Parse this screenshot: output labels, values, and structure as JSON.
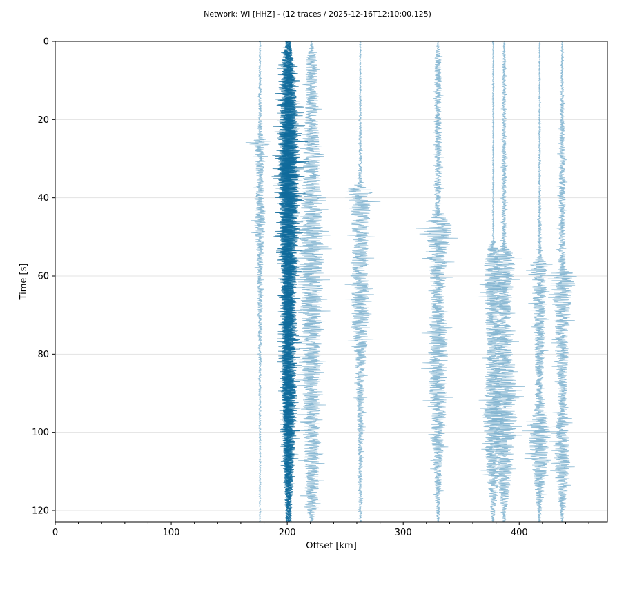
{
  "chart_data": {
    "type": "line",
    "title": "Network: WI [HHZ] - (12 traces / 2025-12-16T12:10:00.125)",
    "xlabel": "Offset [km]",
    "ylabel": "Time [s]",
    "xlim": [
      0,
      476
    ],
    "ylim": [
      123,
      0
    ],
    "xticks": [
      "0",
      "100",
      "200",
      "300",
      "400"
    ],
    "xtick_values": [
      0,
      100,
      200,
      300,
      400
    ],
    "xminor_step": 20,
    "yticks": [
      "0",
      "20",
      "40",
      "60",
      "80",
      "100",
      "120"
    ],
    "ytick_values": [
      0,
      20,
      40,
      60,
      80,
      100,
      120
    ],
    "grid": "horizontal",
    "colors": {
      "light": "#7fb3cf",
      "dark": "#0f6a9b"
    },
    "traces": [
      {
        "offset_km": 176.5,
        "tone": "light",
        "envelope": [
          [
            0,
            0.5
          ],
          [
            20,
            1.5
          ],
          [
            25,
            3
          ],
          [
            26,
            14
          ],
          [
            27,
            5
          ],
          [
            35,
            3
          ],
          [
            46,
            5
          ],
          [
            55,
            3
          ],
          [
            70,
            2
          ],
          [
            85,
            1
          ],
          [
            123,
            0.5
          ]
        ]
      },
      {
        "offset_km": 199.5,
        "tone": "dark",
        "envelope": [
          [
            0,
            1
          ],
          [
            5,
            4
          ],
          [
            30,
            7
          ],
          [
            40,
            7
          ],
          [
            60,
            5
          ],
          [
            90,
            4
          ],
          [
            123,
            1
          ]
        ]
      },
      {
        "offset_km": 200.5,
        "tone": "dark",
        "envelope": [
          [
            0,
            2
          ],
          [
            5,
            5
          ],
          [
            30,
            9
          ],
          [
            40,
            8
          ],
          [
            60,
            6
          ],
          [
            100,
            5
          ],
          [
            123,
            1
          ]
        ]
      },
      {
        "offset_km": 201.5,
        "tone": "dark",
        "envelope": [
          [
            0,
            1
          ],
          [
            9,
            6
          ],
          [
            30,
            10
          ],
          [
            45,
            7
          ],
          [
            70,
            6
          ],
          [
            105,
            5
          ],
          [
            123,
            1
          ]
        ]
      },
      {
        "offset_km": 202.5,
        "tone": "dark",
        "envelope": [
          [
            0,
            1
          ],
          [
            10,
            4
          ],
          [
            35,
            8
          ],
          [
            60,
            6
          ],
          [
            95,
            6
          ],
          [
            123,
            1
          ]
        ]
      },
      {
        "offset_km": 221,
        "tone": "light",
        "envelope": [
          [
            0,
            0.5
          ],
          [
            5,
            5
          ],
          [
            20,
            6
          ],
          [
            35,
            8
          ],
          [
            55,
            11
          ],
          [
            70,
            9
          ],
          [
            100,
            7
          ],
          [
            118,
            6
          ],
          [
            123,
            1
          ]
        ]
      },
      {
        "offset_km": 263,
        "tone": "light",
        "envelope": [
          [
            0,
            0.5
          ],
          [
            36,
            1.5
          ],
          [
            38,
            12
          ],
          [
            42,
            9
          ],
          [
            50,
            7
          ],
          [
            70,
            8
          ],
          [
            85,
            4
          ],
          [
            100,
            2.5
          ],
          [
            123,
            1
          ]
        ]
      },
      {
        "offset_km": 330,
        "tone": "light",
        "envelope": [
          [
            0,
            0.5
          ],
          [
            5,
            3
          ],
          [
            30,
            3
          ],
          [
            44,
            3
          ],
          [
            47,
            14
          ],
          [
            52,
            9
          ],
          [
            65,
            6
          ],
          [
            80,
            9
          ],
          [
            95,
            7
          ],
          [
            123,
            1
          ]
        ]
      },
      {
        "offset_km": 377.5,
        "tone": "light",
        "envelope": [
          [
            0,
            0.5
          ],
          [
            50,
            0.5
          ],
          [
            53,
            5
          ],
          [
            57,
            8
          ],
          [
            80,
            6
          ],
          [
            95,
            9
          ],
          [
            110,
            6
          ],
          [
            123,
            1
          ]
        ]
      },
      {
        "offset_km": 387,
        "tone": "light",
        "envelope": [
          [
            0,
            0.5
          ],
          [
            5,
            1.5
          ],
          [
            52,
            2
          ],
          [
            55,
            10
          ],
          [
            70,
            6
          ],
          [
            95,
            12
          ],
          [
            110,
            7
          ],
          [
            123,
            1
          ]
        ]
      },
      {
        "offset_km": 417.5,
        "tone": "light",
        "envelope": [
          [
            0,
            0.5
          ],
          [
            40,
            1
          ],
          [
            55,
            2
          ],
          [
            57,
            8
          ],
          [
            65,
            6
          ],
          [
            90,
            3
          ],
          [
            101,
            10
          ],
          [
            110,
            6
          ],
          [
            123,
            1
          ]
        ]
      },
      {
        "offset_km": 437,
        "tone": "light",
        "envelope": [
          [
            0,
            0.5
          ],
          [
            20,
            2
          ],
          [
            38,
            3
          ],
          [
            58,
            3
          ],
          [
            60,
            14
          ],
          [
            65,
            8
          ],
          [
            90,
            4
          ],
          [
            107,
            7
          ],
          [
            123,
            1
          ]
        ]
      }
    ]
  }
}
